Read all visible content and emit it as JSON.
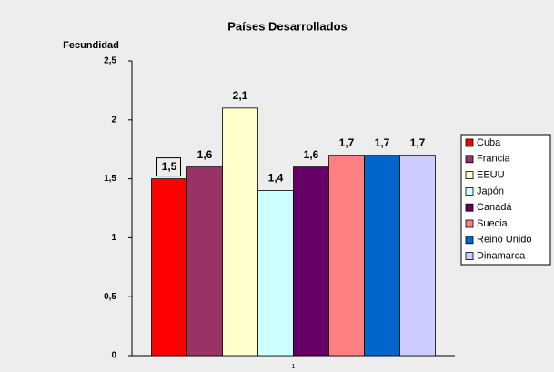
{
  "chart_data": {
    "type": "bar",
    "title": "Países Desarrollados",
    "y_label": "Fecundidad",
    "categories": [
      "1"
    ],
    "series": [
      {
        "name": "Cuba",
        "color": "#ff0000",
        "values": [
          1.5
        ],
        "value_labels": [
          "1,5"
        ]
      },
      {
        "name": "Francia",
        "color": "#993366",
        "values": [
          1.6
        ],
        "value_labels": [
          "1,6"
        ]
      },
      {
        "name": "EEUU",
        "color": "#ffffcc",
        "values": [
          2.1
        ],
        "value_labels": [
          "2,1"
        ]
      },
      {
        "name": "Japón",
        "color": "#ccffff",
        "values": [
          1.4
        ],
        "value_labels": [
          "1,4"
        ]
      },
      {
        "name": "Canadá",
        "color": "#660066",
        "values": [
          1.6
        ],
        "value_labels": [
          "1,6"
        ]
      },
      {
        "name": "Suecia",
        "color": "#ff8080",
        "values": [
          1.7
        ],
        "value_labels": [
          "1,7"
        ]
      },
      {
        "name": "Reino Unido",
        "color": "#0066cc",
        "values": [
          1.7
        ],
        "value_labels": [
          "1,7"
        ]
      },
      {
        "name": "Dinamarca",
        "color": "#ccccff",
        "values": [
          1.7
        ],
        "value_labels": [
          "1,7"
        ]
      }
    ],
    "ylim": [
      0,
      2.5
    ],
    "yticks": [
      0,
      {
        "value": 0.5,
        "label": "0,5"
      },
      1,
      {
        "value": 1.5,
        "label": "1,5"
      },
      2,
      {
        "value": 2.5,
        "label": "2,5"
      }
    ],
    "legend": "right"
  }
}
